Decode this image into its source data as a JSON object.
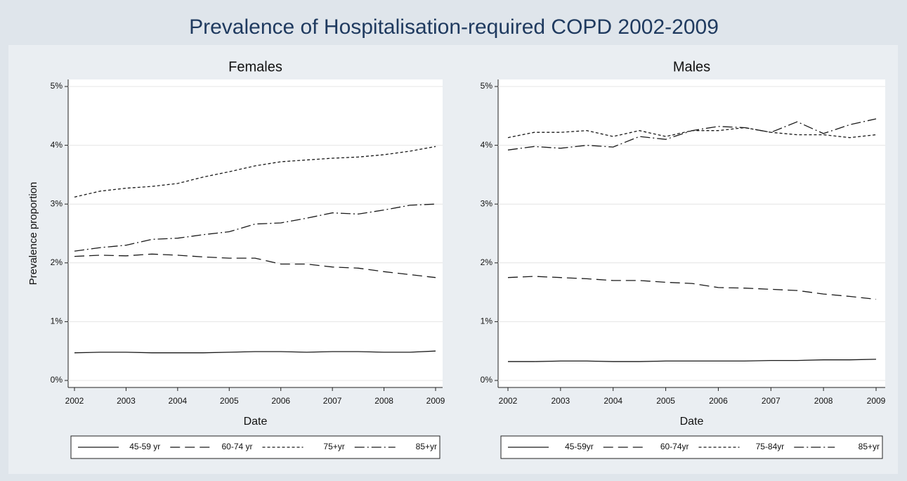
{
  "title": "Prevalence of Hospitalisation-required COPD 2002-2009",
  "chart_data": [
    {
      "type": "line",
      "title": "Females",
      "xlabel": "Date",
      "ylabel": "Prevalence proportion",
      "x": [
        2002,
        2002.5,
        2003,
        2003.5,
        2004,
        2004.5,
        2005,
        2005.5,
        2006,
        2006.5,
        2007,
        2007.5,
        2008,
        2008.5,
        2009
      ],
      "xlim": [
        2002,
        2009
      ],
      "xticks": [
        2002,
        2003,
        2004,
        2005,
        2006,
        2007,
        2008,
        2009
      ],
      "ylim": [
        0,
        5
      ],
      "yticks": [
        {
          "value": 0,
          "label": "0%"
        },
        {
          "value": 1,
          "label": "1%"
        },
        {
          "value": 2,
          "label": "2%"
        },
        {
          "value": 3,
          "label": "3%"
        },
        {
          "value": 4,
          "label": "4%"
        },
        {
          "value": 5,
          "label": "5%"
        }
      ],
      "grid": true,
      "series": [
        {
          "name": "45-59 yr",
          "color": "#1a1a1a",
          "dash": "solid",
          "values": [
            0.47,
            0.48,
            0.48,
            0.47,
            0.47,
            0.47,
            0.48,
            0.49,
            0.49,
            0.48,
            0.49,
            0.49,
            0.48,
            0.48,
            0.5
          ]
        },
        {
          "name": "60-74 yr",
          "color": "#1a1a1a",
          "dash": "long",
          "values": [
            2.11,
            2.13,
            2.12,
            2.15,
            2.13,
            2.1,
            2.08,
            2.08,
            1.98,
            1.98,
            1.93,
            1.91,
            1.85,
            1.8,
            1.75
          ]
        },
        {
          "name": "75+yr",
          "color": "#1a1a1a",
          "dash": "short",
          "values": [
            3.12,
            3.22,
            3.27,
            3.3,
            3.35,
            3.46,
            3.55,
            3.65,
            3.72,
            3.75,
            3.78,
            3.8,
            3.84,
            3.9,
            3.98
          ]
        },
        {
          "name": "85+yr",
          "color": "#1a1a1a",
          "dash": "dashdot",
          "values": [
            2.2,
            2.26,
            2.3,
            2.4,
            2.42,
            2.48,
            2.53,
            2.66,
            2.68,
            2.76,
            2.85,
            2.83,
            2.9,
            2.98,
            3.0
          ]
        }
      ]
    },
    {
      "type": "line",
      "title": "Males",
      "xlabel": "Date",
      "x": [
        2002,
        2002.5,
        2003,
        2003.5,
        2004,
        2004.5,
        2005,
        2005.5,
        2006,
        2006.5,
        2007,
        2007.5,
        2008,
        2008.5,
        2009
      ],
      "xlim": [
        2002,
        2009
      ],
      "xticks": [
        2002,
        2003,
        2004,
        2005,
        2006,
        2007,
        2008,
        2009
      ],
      "ylim": [
        0,
        5
      ],
      "yticks": [
        {
          "value": 0,
          "label": "0%"
        },
        {
          "value": 1,
          "label": "1%"
        },
        {
          "value": 2,
          "label": "2%"
        },
        {
          "value": 3,
          "label": "3%"
        },
        {
          "value": 4,
          "label": "4%"
        },
        {
          "value": 5,
          "label": "5%"
        }
      ],
      "grid": true,
      "series": [
        {
          "name": "45-59yr",
          "color": "#1a1a1a",
          "dash": "solid",
          "values": [
            0.32,
            0.32,
            0.33,
            0.33,
            0.32,
            0.32,
            0.33,
            0.33,
            0.33,
            0.33,
            0.34,
            0.34,
            0.35,
            0.35,
            0.36
          ]
        },
        {
          "name": "60-74yr",
          "color": "#1a1a1a",
          "dash": "long",
          "values": [
            1.75,
            1.77,
            1.75,
            1.73,
            1.7,
            1.7,
            1.67,
            1.65,
            1.58,
            1.57,
            1.55,
            1.53,
            1.47,
            1.43,
            1.38
          ]
        },
        {
          "name": "75-84yr",
          "color": "#1a1a1a",
          "dash": "short",
          "values": [
            4.13,
            4.22,
            4.22,
            4.25,
            4.15,
            4.25,
            4.15,
            4.25,
            4.25,
            4.3,
            4.22,
            4.18,
            4.18,
            4.13,
            4.18
          ]
        },
        {
          "name": "85+yr",
          "color": "#1a1a1a",
          "dash": "dashdot",
          "values": [
            3.92,
            3.98,
            3.95,
            4.0,
            3.97,
            4.15,
            4.1,
            4.25,
            4.32,
            4.3,
            4.22,
            4.4,
            4.2,
            4.35,
            4.45
          ]
        }
      ]
    }
  ]
}
